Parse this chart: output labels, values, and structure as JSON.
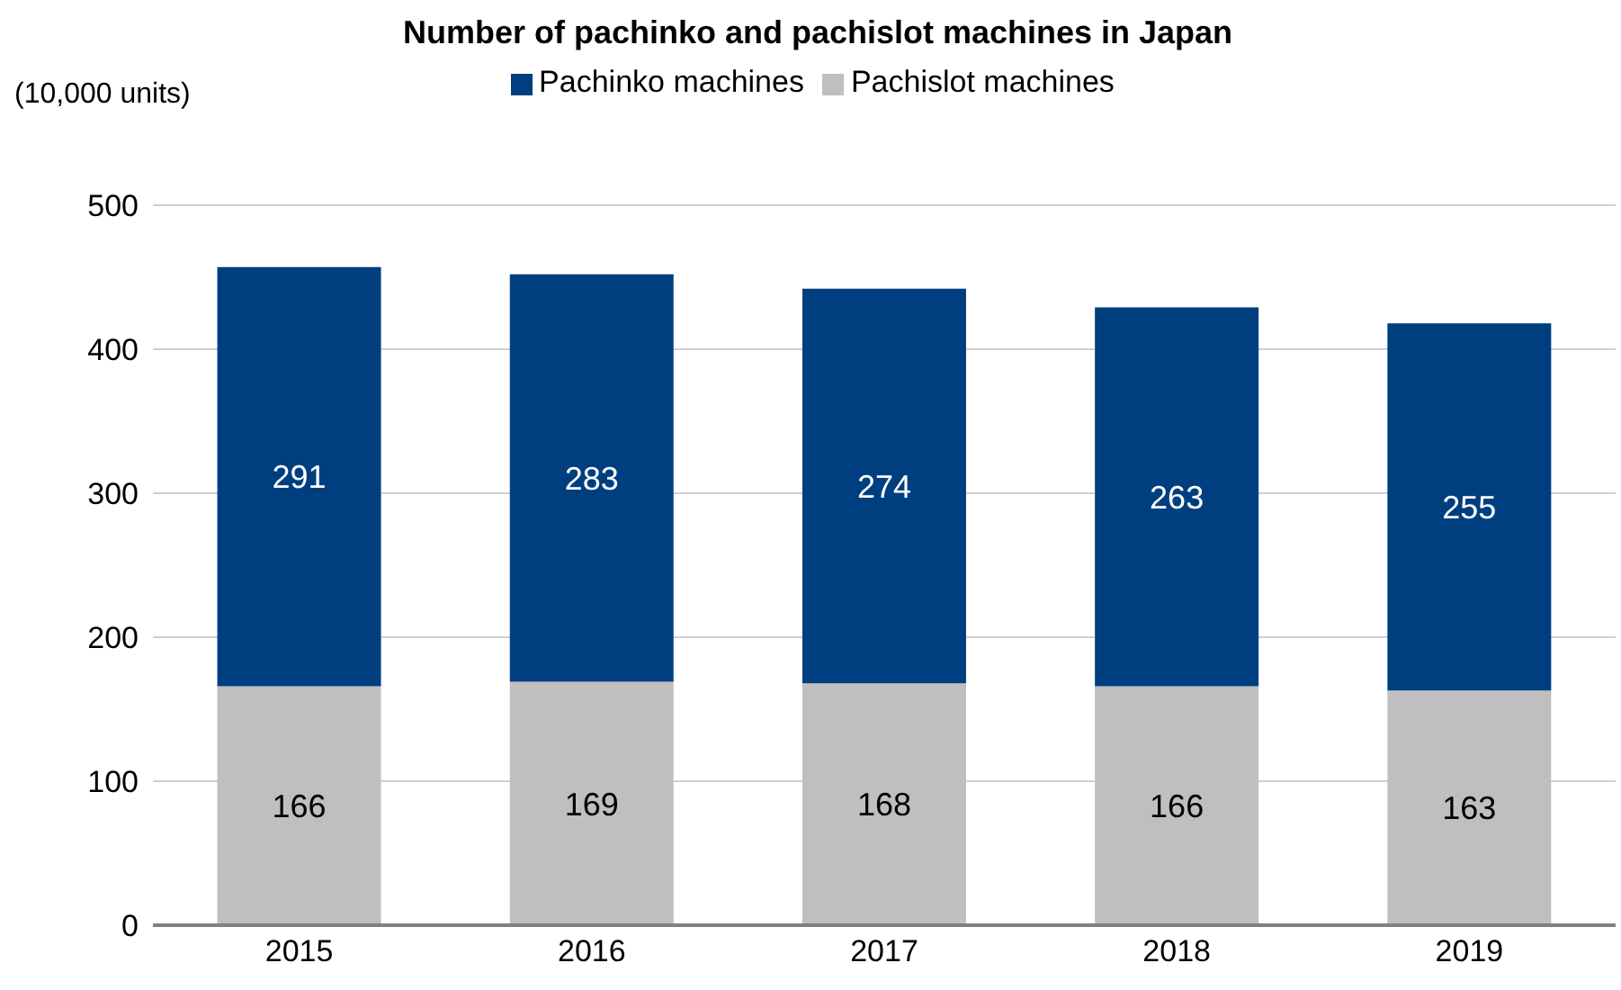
{
  "chart_data": {
    "type": "bar",
    "title": "Number of pachinko and pachislot machines in Japan",
    "ylabel": "(10,000 units)",
    "categories": [
      "2015",
      "2016",
      "2017",
      "2018",
      "2019"
    ],
    "stacked": true,
    "series": [
      {
        "name": "Pachislot machines",
        "color": "#bfbfbf",
        "values": [
          166,
          169,
          168,
          166,
          163
        ]
      },
      {
        "name": "Pachinko machines",
        "color": "#003f7f",
        "values": [
          291,
          283,
          274,
          263,
          255
        ]
      }
    ],
    "ylim": [
      0,
      500
    ],
    "yticks": [
      0,
      100,
      200,
      300,
      400,
      500
    ],
    "grid": "y",
    "legend": "top",
    "data_labels": true
  }
}
